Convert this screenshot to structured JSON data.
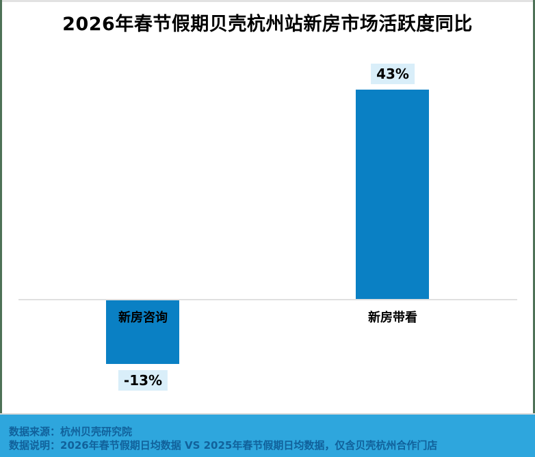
{
  "title": "2026年春节假期贝壳杭州站新房市场活跃度同比",
  "chart_data": {
    "type": "bar",
    "title": "2026年春节假期贝壳杭州站新房市场活跃度同比",
    "categories": [
      "新房咨询",
      "新房带看"
    ],
    "values": [
      -13,
      43
    ],
    "labels": [
      "-13%",
      "43%"
    ],
    "xlabel": "",
    "ylabel": "",
    "ylim": [
      -20,
      50
    ],
    "grid": false,
    "legend": "none",
    "bar_color": "#0a80c4",
    "value_label_bg": "#d9eef9",
    "value_label_text_color": "#000000",
    "baseline_color": "#e0e0e0"
  },
  "footer": {
    "source": "数据来源：杭州贝壳研究院",
    "note": "数据说明：2026年春节假期日均数据 VS 2025年春节假期日均数据，仅含贝壳杭州合作门店",
    "bg_color": "#2ea6dd",
    "text_color": "#11619b"
  }
}
